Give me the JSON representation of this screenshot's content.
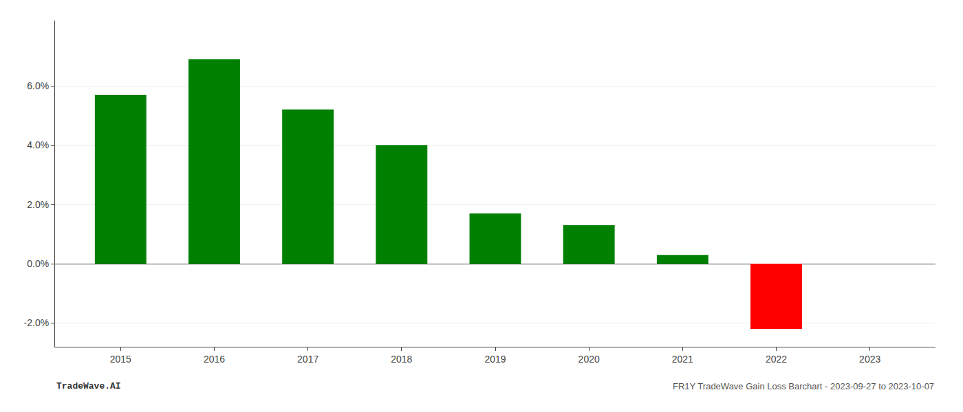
{
  "chart_data": {
    "type": "bar",
    "x": [
      2015,
      2016,
      2017,
      2018,
      2019,
      2020,
      2021,
      2022,
      2023
    ],
    "values": [
      0.057,
      0.069,
      0.052,
      0.04,
      0.017,
      0.013,
      0.003,
      -0.022,
      null
    ],
    "colors": [
      "#008000",
      "#008000",
      "#008000",
      "#008000",
      "#008000",
      "#008000",
      "#008000",
      "#ff0000",
      null
    ],
    "xlim": [
      2014.3,
      2023.7
    ],
    "xticks": [
      2015,
      2016,
      2017,
      2018,
      2019,
      2020,
      2021,
      2022,
      2023
    ],
    "ylim": [
      -0.028,
      0.082
    ],
    "yticks": [
      {
        "value": -0.02,
        "label": "-2.0%"
      },
      {
        "value": 0.0,
        "label": "0.0%"
      },
      {
        "value": 0.02,
        "label": "2.0%"
      },
      {
        "value": 0.04,
        "label": "4.0%"
      },
      {
        "value": 0.06,
        "label": "6.0%"
      }
    ],
    "grid": true,
    "annotations": [
      "TradeWave.AI",
      "FR1Y TradeWave Gain Loss Barchart - 2023-09-27 to 2023-10-07"
    ]
  }
}
